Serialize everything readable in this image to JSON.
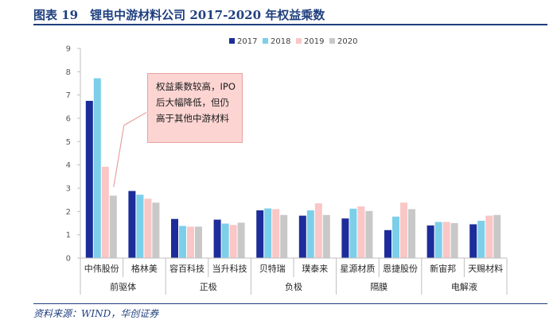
{
  "page": {
    "title": "图表 19　锂电中游材料公司 2017-2020 年权益乘数",
    "source": "资料来源：WIND，华创证券"
  },
  "colors": {
    "brand": "#1f3f7f",
    "series": [
      "#1c2c9a",
      "#7ccfe9",
      "#fac6c6",
      "#c8c8c8"
    ],
    "callout_bg": "#fcd5d3",
    "callout_line": "#e7a3a0"
  },
  "annotation": "权益乘数较高，IPO后大幅降低，但仍高于其他中游材料",
  "chart_data": {
    "type": "bar",
    "title": "",
    "xlabel": "",
    "ylabel": "",
    "ylim": [
      0,
      9
    ],
    "yticks": [
      0,
      1,
      2,
      3,
      4,
      5,
      6,
      7,
      8,
      9
    ],
    "grid": false,
    "legend_position": "top-center",
    "categories": [
      "中伟股份",
      "格林美",
      "容百科技",
      "当升科技",
      "贝特瑞",
      "璞泰来",
      "星源材质",
      "恩捷股份",
      "新宙邦",
      "天赐材料"
    ],
    "groups": [
      {
        "name": "前驱体",
        "categories": [
          "中伟股份",
          "格林美"
        ]
      },
      {
        "name": "正极",
        "categories": [
          "容百科技",
          "当升科技"
        ]
      },
      {
        "name": "负极",
        "categories": [
          "贝特瑞",
          "璞泰来"
        ]
      },
      {
        "name": "隔膜",
        "categories": [
          "星源材质",
          "恩捷股份"
        ]
      },
      {
        "name": "电解液",
        "categories": [
          "新宙邦",
          "天赐材料"
        ]
      }
    ],
    "series": [
      {
        "name": "2017",
        "values": [
          6.75,
          2.88,
          1.68,
          1.65,
          2.05,
          1.82,
          1.7,
          1.2,
          1.4,
          1.45
        ]
      },
      {
        "name": "2018",
        "values": [
          7.72,
          2.72,
          1.38,
          1.48,
          2.13,
          2.05,
          2.12,
          1.78,
          1.55,
          1.6
        ]
      },
      {
        "name": "2019",
        "values": [
          3.92,
          2.55,
          1.35,
          1.42,
          2.1,
          2.35,
          2.22,
          2.38,
          1.55,
          1.82
        ]
      },
      {
        "name": "2020",
        "values": [
          2.68,
          2.38,
          1.35,
          1.52,
          1.85,
          1.85,
          2.02,
          2.1,
          1.5,
          1.85
        ]
      }
    ]
  }
}
